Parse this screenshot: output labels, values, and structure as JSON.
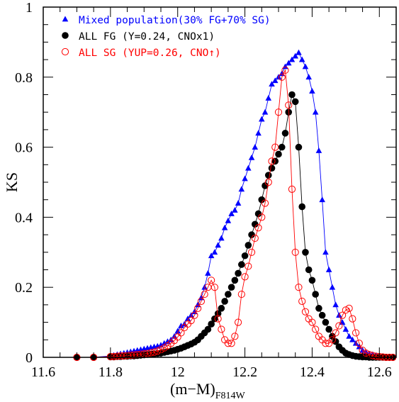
{
  "chart_data": {
    "type": "scatter",
    "title": "",
    "xlabel_main": "(m−M)",
    "xlabel_sub": "F814W",
    "ylabel": "KS",
    "xlim": [
      11.6,
      12.65
    ],
    "ylim": [
      0,
      1
    ],
    "x_ticks": [
      11.6,
      11.8,
      12,
      12.2,
      12.4,
      12.6
    ],
    "x_tick_labels": [
      "11.6",
      "11.8",
      "12",
      "12.2",
      "12.4",
      "12.6"
    ],
    "y_ticks": [
      0,
      0.2,
      0.4,
      0.6,
      0.8,
      1
    ],
    "y_tick_labels": [
      "0",
      "0.2",
      "0.4",
      "0.6",
      "0.8",
      "1"
    ],
    "legend_position": "top-left",
    "grid": false,
    "series": [
      {
        "name": "Mixed population(30% FG+70% SG)",
        "color": "#0000ff",
        "marker": "triangle",
        "x": [
          11.7,
          11.75,
          11.8,
          11.81,
          11.82,
          11.83,
          11.84,
          11.85,
          11.86,
          11.87,
          11.88,
          11.89,
          11.9,
          11.91,
          11.92,
          11.93,
          11.94,
          11.95,
          11.96,
          11.97,
          11.98,
          11.99,
          12.0,
          12.01,
          12.02,
          12.03,
          12.04,
          12.05,
          12.06,
          12.07,
          12.08,
          12.09,
          12.1,
          12.11,
          12.12,
          12.13,
          12.14,
          12.15,
          12.16,
          12.17,
          12.18,
          12.19,
          12.2,
          12.21,
          12.22,
          12.23,
          12.24,
          12.25,
          12.26,
          12.27,
          12.28,
          12.29,
          12.3,
          12.31,
          12.32,
          12.33,
          12.34,
          12.35,
          12.36,
          12.37,
          12.38,
          12.39,
          12.4,
          12.41,
          12.42,
          12.43,
          12.44,
          12.45,
          12.46,
          12.47,
          12.48,
          12.49,
          12.5,
          12.51,
          12.52,
          12.53,
          12.54,
          12.55,
          12.56,
          12.57,
          12.58,
          12.59,
          12.6,
          12.61,
          12.62,
          12.63,
          12.64
        ],
        "y": [
          0.0,
          0.0,
          0.004,
          0.006,
          0.008,
          0.01,
          0.012,
          0.014,
          0.016,
          0.018,
          0.02,
          0.022,
          0.024,
          0.026,
          0.028,
          0.03,
          0.032,
          0.035,
          0.04,
          0.045,
          0.05,
          0.06,
          0.075,
          0.09,
          0.095,
          0.11,
          0.12,
          0.13,
          0.15,
          0.17,
          0.2,
          0.24,
          0.29,
          0.3,
          0.32,
          0.34,
          0.37,
          0.39,
          0.41,
          0.42,
          0.44,
          0.48,
          0.51,
          0.54,
          0.57,
          0.6,
          0.64,
          0.68,
          0.7,
          0.74,
          0.78,
          0.79,
          0.8,
          0.81,
          0.83,
          0.84,
          0.85,
          0.86,
          0.87,
          0.85,
          0.83,
          0.8,
          0.76,
          0.7,
          0.59,
          0.45,
          0.3,
          0.25,
          0.2,
          0.15,
          0.12,
          0.1,
          0.08,
          0.06,
          0.05,
          0.04,
          0.03,
          0.02,
          0.015,
          0.01,
          0.008,
          0.005,
          0.003,
          0.002,
          0.001,
          0.0,
          0.0
        ]
      },
      {
        "name": "ALL FG (Y=0.24, CNOx1)",
        "color": "#000000",
        "marker": "filled-circle",
        "x": [
          11.7,
          11.75,
          11.8,
          11.81,
          11.82,
          11.83,
          11.84,
          11.85,
          11.86,
          11.87,
          11.88,
          11.89,
          11.9,
          11.91,
          11.92,
          11.93,
          11.94,
          11.95,
          11.96,
          11.97,
          11.98,
          11.99,
          12.0,
          12.01,
          12.02,
          12.03,
          12.04,
          12.05,
          12.06,
          12.07,
          12.08,
          12.09,
          12.1,
          12.11,
          12.12,
          12.13,
          12.14,
          12.15,
          12.16,
          12.17,
          12.18,
          12.19,
          12.2,
          12.21,
          12.22,
          12.23,
          12.24,
          12.25,
          12.26,
          12.27,
          12.28,
          12.29,
          12.3,
          12.31,
          12.32,
          12.33,
          12.34,
          12.35,
          12.36,
          12.37,
          12.38,
          12.39,
          12.4,
          12.41,
          12.42,
          12.43,
          12.44,
          12.45,
          12.46,
          12.47,
          12.48,
          12.49,
          12.5,
          12.51,
          12.52,
          12.53,
          12.54,
          12.55,
          12.56,
          12.57,
          12.58,
          12.59,
          12.6,
          12.61,
          12.62,
          12.63,
          12.64
        ],
        "y": [
          0.0,
          0.0,
          0.001,
          0.001,
          0.002,
          0.002,
          0.003,
          0.003,
          0.004,
          0.004,
          0.005,
          0.006,
          0.007,
          0.008,
          0.009,
          0.01,
          0.011,
          0.012,
          0.014,
          0.016,
          0.018,
          0.02,
          0.023,
          0.026,
          0.03,
          0.034,
          0.038,
          0.043,
          0.05,
          0.06,
          0.07,
          0.08,
          0.095,
          0.11,
          0.125,
          0.14,
          0.16,
          0.18,
          0.2,
          0.22,
          0.24,
          0.265,
          0.29,
          0.32,
          0.35,
          0.38,
          0.41,
          0.45,
          0.49,
          0.52,
          0.54,
          0.56,
          0.58,
          0.6,
          0.64,
          0.7,
          0.75,
          0.73,
          0.6,
          0.43,
          0.3,
          0.25,
          0.22,
          0.18,
          0.14,
          0.12,
          0.1,
          0.08,
          0.06,
          0.045,
          0.03,
          0.02,
          0.012,
          0.008,
          0.005,
          0.003,
          0.002,
          0.001,
          0.001,
          0.0,
          0.0,
          0.0,
          0.0,
          0.0,
          0.0,
          0.0,
          0.0
        ]
      },
      {
        "name": "ALL SG (YUP=0.26, CNO↑)",
        "color": "#ff0000",
        "marker": "open-circle",
        "x": [
          11.7,
          11.75,
          11.8,
          11.81,
          11.82,
          11.83,
          11.84,
          11.85,
          11.86,
          11.87,
          11.88,
          11.89,
          11.9,
          11.91,
          11.92,
          11.93,
          11.94,
          11.95,
          11.96,
          11.97,
          11.98,
          11.99,
          12.0,
          12.01,
          12.02,
          12.03,
          12.04,
          12.05,
          12.06,
          12.07,
          12.08,
          12.09,
          12.1,
          12.11,
          12.12,
          12.13,
          12.14,
          12.15,
          12.16,
          12.17,
          12.18,
          12.19,
          12.2,
          12.21,
          12.22,
          12.23,
          12.24,
          12.25,
          12.26,
          12.27,
          12.28,
          12.29,
          12.3,
          12.31,
          12.32,
          12.33,
          12.34,
          12.35,
          12.36,
          12.37,
          12.38,
          12.39,
          12.4,
          12.41,
          12.42,
          12.43,
          12.44,
          12.45,
          12.46,
          12.47,
          12.48,
          12.49,
          12.5,
          12.51,
          12.52,
          12.53,
          12.54,
          12.55,
          12.56,
          12.57,
          12.58,
          12.59,
          12.6,
          12.61,
          12.62,
          12.63,
          12.64
        ],
        "y": [
          0.0,
          0.0,
          0.002,
          0.002,
          0.003,
          0.004,
          0.004,
          0.005,
          0.006,
          0.007,
          0.008,
          0.009,
          0.01,
          0.011,
          0.013,
          0.015,
          0.018,
          0.022,
          0.027,
          0.033,
          0.04,
          0.048,
          0.058,
          0.07,
          0.085,
          0.095,
          0.105,
          0.12,
          0.14,
          0.16,
          0.18,
          0.2,
          0.22,
          0.2,
          0.11,
          0.08,
          0.05,
          0.04,
          0.04,
          0.06,
          0.1,
          0.18,
          0.23,
          0.26,
          0.3,
          0.34,
          0.37,
          0.4,
          0.44,
          0.5,
          0.56,
          0.6,
          0.7,
          0.8,
          0.82,
          0.72,
          0.48,
          0.3,
          0.2,
          0.16,
          0.13,
          0.11,
          0.1,
          0.08,
          0.06,
          0.05,
          0.04,
          0.04,
          0.05,
          0.07,
          0.09,
          0.12,
          0.135,
          0.14,
          0.11,
          0.07,
          0.04,
          0.02,
          0.012,
          0.008,
          0.005,
          0.003,
          0.002,
          0.001,
          0.0,
          0.0,
          0.0
        ]
      }
    ]
  }
}
